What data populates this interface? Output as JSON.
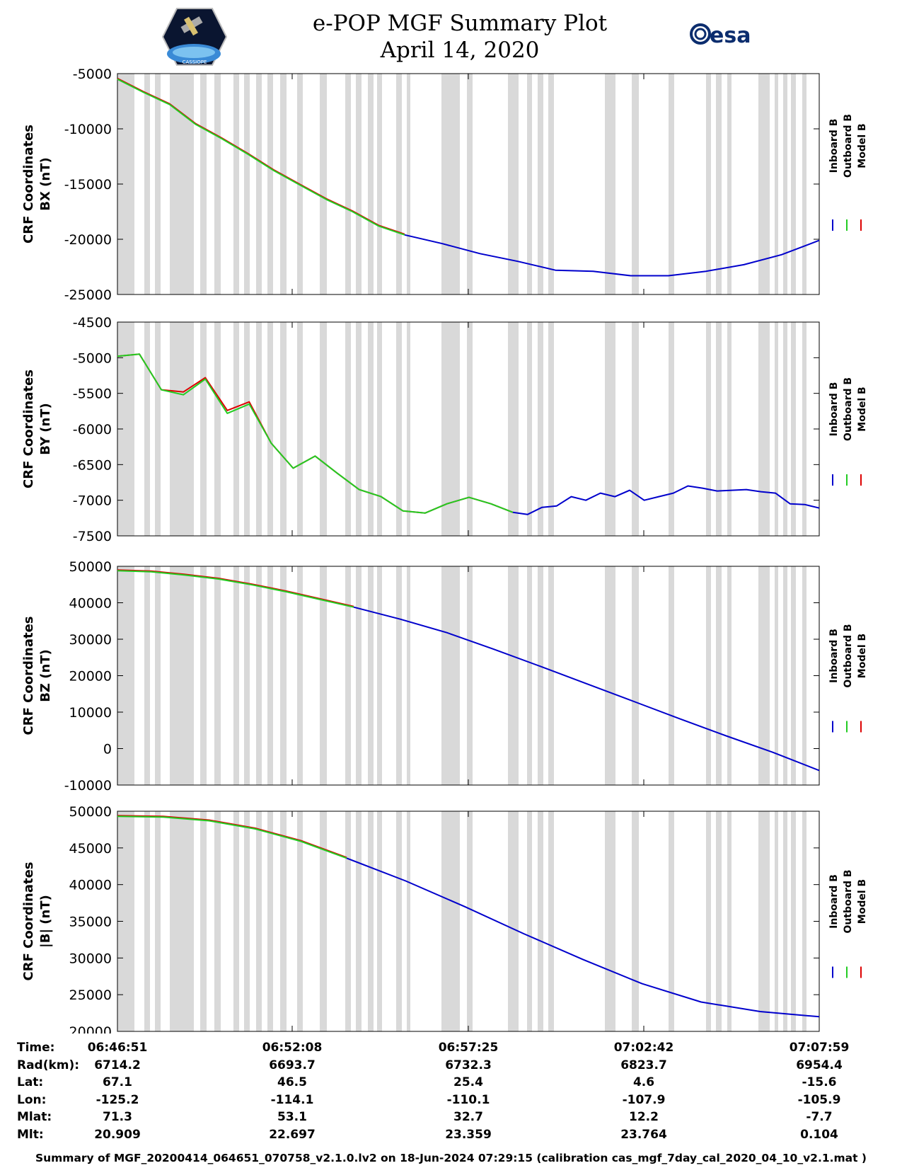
{
  "header": {
    "title_line1": "e-POP MGF Summary Plot",
    "title_line2": "April 14, 2020",
    "left_logo_text": "CASSIOPE",
    "right_logo_text": "esa"
  },
  "legend": {
    "labels": [
      "Inboard B",
      "Outboard B",
      "Model B"
    ],
    "colors": [
      "#0000cc",
      "#22cc22",
      "#dd0000"
    ]
  },
  "chart_data": [
    {
      "type": "line",
      "panel": "BX",
      "ylabel_line1": "CRF Coordinates",
      "ylabel_line2": "BX (nT)",
      "ylim": [
        -25000,
        -5000
      ],
      "yticks": [
        "-5000",
        "-10000",
        "-15000",
        "-20000",
        "-25000"
      ],
      "ytick_values": [
        -5000,
        -10000,
        -15000,
        -20000,
        -25000
      ],
      "x_minutes": [
        0,
        1,
        2,
        3,
        4,
        5,
        6,
        7,
        8,
        9,
        10,
        11,
        12,
        13,
        14,
        15,
        16,
        17,
        18,
        19,
        20,
        21
      ],
      "green_values": [
        -5500,
        -6700,
        -7800,
        -9600,
        -10900,
        -12300,
        -13800,
        -15100,
        -16400,
        -17500,
        -18800,
        -19600
      ],
      "blue_values": [
        -19600,
        -20400,
        -21300,
        -22000,
        -22800,
        -22900,
        -23300,
        -23300,
        -22900,
        -22300,
        -21400,
        -20100
      ]
    },
    {
      "type": "line",
      "panel": "BY",
      "ylabel_line1": "CRF Coordinates",
      "ylabel_line2": "BY (nT)",
      "ylim": [
        -7500,
        -4500
      ],
      "yticks": [
        "-4500",
        "-5000",
        "-5500",
        "-6000",
        "-6500",
        "-7000",
        "-7500"
      ],
      "ytick_values": [
        -4500,
        -5000,
        -5500,
        -6000,
        -6500,
        -7000,
        -7500
      ],
      "green_values": [
        -4980,
        -4950,
        -5450,
        -5520,
        -5300,
        -5780,
        -5650,
        -6200,
        -6550,
        -6380,
        -6620,
        -6850,
        -6950,
        -7150,
        -7180,
        -7050,
        -6960,
        -7050,
        -7170
      ],
      "red_values": [
        -4980,
        -4950,
        -5450,
        -5480,
        -5280,
        -5740,
        -5620,
        -6200,
        -6550,
        -6380,
        -6620,
        -6850,
        -6950,
        -7150,
        -7180,
        -7050,
        -6960,
        -7050,
        -7170
      ],
      "blue_values": [
        -7170,
        -7200,
        -7100,
        -7080,
        -6950,
        -7000,
        -6900,
        -6950,
        -6860,
        -7000,
        -6950,
        -6900,
        -6800,
        -6830,
        -6870,
        -6860,
        -6850,
        -6880,
        -6900,
        -7050,
        -7060,
        -7110
      ]
    },
    {
      "type": "line",
      "panel": "BZ",
      "ylabel_line1": "CRF Coordinates",
      "ylabel_line2": "BZ (nT)",
      "ylim": [
        -10000,
        50000
      ],
      "yticks": [
        "50000",
        "40000",
        "30000",
        "20000",
        "10000",
        "0",
        "-10000"
      ],
      "ytick_values": [
        50000,
        40000,
        30000,
        20000,
        10000,
        0,
        -10000
      ],
      "green_values": [
        48800,
        48500,
        47600,
        46500,
        44900,
        43000,
        40900,
        38800
      ],
      "blue_values": [
        38800,
        35500,
        31800,
        27300,
        22600,
        17800,
        13000,
        8200,
        3500,
        -1000,
        -6000
      ]
    },
    {
      "type": "line",
      "panel": "|B|",
      "ylabel_line1": "CRF Coordinates",
      "ylabel_line2": "|B| (nT)",
      "ylim": [
        20000,
        50000
      ],
      "yticks": [
        "50000",
        "45000",
        "40000",
        "35000",
        "30000",
        "25000",
        "20000"
      ],
      "ytick_values": [
        50000,
        45000,
        40000,
        35000,
        30000,
        25000,
        20000
      ],
      "green_values": [
        49300,
        49200,
        48700,
        47600,
        45900,
        43600
      ],
      "blue_values": [
        43600,
        40500,
        37000,
        33300,
        29800,
        26500,
        24000,
        22700,
        22000
      ]
    }
  ],
  "info_table": {
    "labels": [
      "Time:",
      "Rad(km):",
      "Lat:",
      "Lon:",
      "Mlat:",
      "Mlt:"
    ],
    "columns": [
      [
        "06:46:51",
        "6714.2",
        "67.1",
        "-125.2",
        "71.3",
        "20.909"
      ],
      [
        "06:52:08",
        "6693.7",
        "46.5",
        "-114.1",
        "53.1",
        "22.697"
      ],
      [
        "06:57:25",
        "6732.3",
        "25.4",
        "-110.1",
        "32.7",
        "23.359"
      ],
      [
        "07:02:42",
        "6823.7",
        "4.6",
        "-107.9",
        "12.2",
        "23.764"
      ],
      [
        "07:07:59",
        "6954.4",
        "-15.6",
        "-105.9",
        "-7.7",
        "0.104"
      ]
    ]
  },
  "footer": "Summary of MGF_20200414_064651_070758_v2.1.0.lv2 on 18-Jun-2024 07:29:15 (calibration cas_mgf_7day_cal_2020_04_10_v2.1.mat )"
}
